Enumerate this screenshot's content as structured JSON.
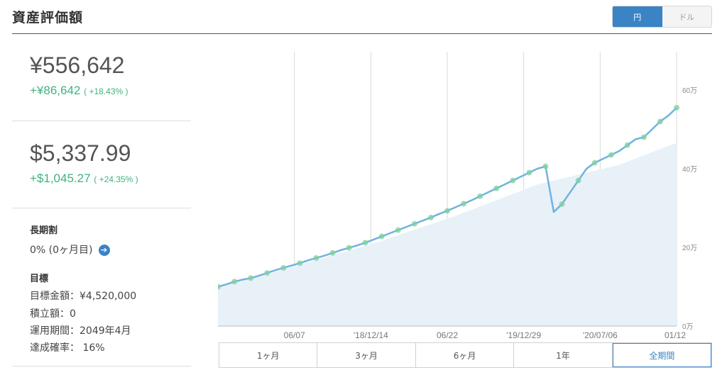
{
  "header": {
    "title": "資産評価額",
    "currency_options": [
      {
        "label": "円",
        "active": true
      },
      {
        "label": "ドル",
        "active": false
      }
    ]
  },
  "summary": {
    "jpy_total": "¥556,642",
    "jpy_change": "+¥86,642",
    "jpy_change_pct": "( +18.43% )",
    "usd_total": "$5,337.99",
    "usd_change": "+$1,045.27",
    "usd_change_pct": "( +24.35% )"
  },
  "long_term": {
    "label": "長期割",
    "value": "0% (0ヶ月目)"
  },
  "goal": {
    "label": "目標",
    "target_amount": "目標金額：¥4,520,000",
    "contribution": "積立額：0",
    "period": "運用期間：2049年4月",
    "probability": "達成確率： 16%"
  },
  "period_tabs": [
    {
      "label": "1ヶ月",
      "active": false
    },
    {
      "label": "3ヶ月",
      "active": false
    },
    {
      "label": "6ヶ月",
      "active": false
    },
    {
      "label": "1年",
      "active": false
    },
    {
      "label": "全期間",
      "active": true
    }
  ],
  "colors": {
    "accent": "#3a84c5",
    "positive": "#3fb27f",
    "line": "#6fb3e0",
    "area": "#e8f1f8",
    "marker": "#7fcf9f"
  },
  "chart_data": {
    "type": "line",
    "x_tick_labels": [
      "06/07",
      "'18/12/14",
      "06/22",
      "'19/12/29",
      "'20/07/06",
      "01/12"
    ],
    "y_tick_labels": [
      "0万",
      "20万",
      "40万",
      "60万"
    ],
    "ylim": [
      0,
      60
    ],
    "y_unit": "万円",
    "series": [
      {
        "values": [
          10,
          10.6,
          11.3,
          11.8,
          12.2,
          12.8,
          13.5,
          14.2,
          14.8,
          15.4,
          16.0,
          16.7,
          17.3,
          17.9,
          18.6,
          19.3,
          19.9,
          20.5,
          21.2,
          22.0,
          22.8,
          23.6,
          24.4,
          25.2,
          26.0,
          26.8,
          27.6,
          28.5,
          29.3,
          30.2,
          31.1,
          32.0,
          33.0,
          34.0,
          35.0,
          36.0,
          37.0,
          38.0,
          39.0,
          40.0,
          40.6,
          29.0,
          31.0,
          34.0,
          37.0,
          40.0,
          41.5,
          42.5,
          43.5,
          44.5,
          46.0,
          47.5,
          48.0,
          50.0,
          52.0,
          53.5,
          55.5
        ]
      },
      {
        "values": [
          10,
          10.5,
          11.0,
          11.5,
          12.0,
          12.6,
          13.2,
          13.8,
          14.4,
          15.0,
          15.6,
          16.2,
          16.8,
          17.4,
          18.0,
          18.6,
          19.2,
          19.8,
          20.4,
          21.0,
          21.7,
          22.4,
          23.1,
          23.8,
          24.5,
          25.2,
          25.9,
          26.6,
          27.3,
          28.0,
          28.8,
          29.6,
          30.4,
          31.2,
          32.0,
          32.8,
          33.6,
          34.4,
          35.2,
          36.0,
          36.5,
          37.0,
          37.5,
          38.0,
          38.5,
          39.0,
          39.5,
          40.0,
          40.5,
          41.0,
          41.8,
          42.6,
          43.4,
          44.2,
          45.0,
          45.8,
          46.5
        ]
      }
    ]
  }
}
